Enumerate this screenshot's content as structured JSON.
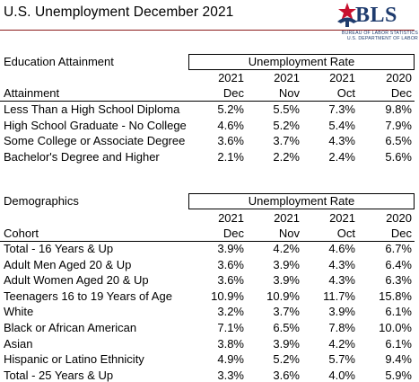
{
  "title": "U.S. Unemployment December 2021",
  "logo": {
    "name": "BLS",
    "line1": "BUREAU OF LABOR STATISTICS",
    "line2": "U.S. DEPARTMENT OF LABOR",
    "colors": {
      "navy": "#1f3c6e",
      "red": "#c8102e"
    }
  },
  "education": {
    "section_label": "Education Attainment",
    "group_header": "Unemployment Rate",
    "row_header": "Attainment",
    "columns": [
      {
        "year": "2021",
        "month": "Dec"
      },
      {
        "year": "2021",
        "month": "Nov"
      },
      {
        "year": "2021",
        "month": "Oct"
      },
      {
        "year": "2020",
        "month": "Dec"
      }
    ],
    "rows": [
      {
        "label": "Less Than a High School Diploma",
        "values": [
          "5.2%",
          "5.5%",
          "7.3%",
          "9.8%"
        ]
      },
      {
        "label": "High School Graduate - No College",
        "values": [
          "4.6%",
          "5.2%",
          "5.4%",
          "7.9%"
        ]
      },
      {
        "label": "Some College or Associate Degree",
        "values": [
          "3.6%",
          "3.7%",
          "4.3%",
          "6.5%"
        ]
      },
      {
        "label": "Bachelor's Degree and Higher",
        "values": [
          "2.1%",
          "2.2%",
          "2.4%",
          "5.6%"
        ]
      }
    ]
  },
  "demographics": {
    "section_label": "Demographics",
    "group_header": "Unemployment Rate",
    "row_header": "Cohort",
    "columns": [
      {
        "year": "2021",
        "month": "Dec"
      },
      {
        "year": "2021",
        "month": "Nov"
      },
      {
        "year": "2021",
        "month": "Oct"
      },
      {
        "year": "2020",
        "month": "Dec"
      }
    ],
    "rows": [
      {
        "label": "Total - 16 Years & Up",
        "values": [
          "3.9%",
          "4.2%",
          "4.6%",
          "6.7%"
        ]
      },
      {
        "label": "Adult Men Aged 20 & Up",
        "values": [
          "3.6%",
          "3.9%",
          "4.3%",
          "6.4%"
        ]
      },
      {
        "label": "Adult Women Aged 20 & Up",
        "values": [
          "3.6%",
          "3.9%",
          "4.3%",
          "6.3%"
        ]
      },
      {
        "label": "Teenagers 16 to 19 Years of Age",
        "values": [
          "10.9%",
          "10.9%",
          "11.7%",
          "15.8%"
        ]
      },
      {
        "label": "White",
        "values": [
          "3.2%",
          "3.7%",
          "3.9%",
          "6.1%"
        ]
      },
      {
        "label": "Black or African American",
        "values": [
          "7.1%",
          "6.5%",
          "7.8%",
          "10.0%"
        ]
      },
      {
        "label": "Asian",
        "values": [
          "3.8%",
          "3.9%",
          "4.2%",
          "6.1%"
        ]
      },
      {
        "label": "Hispanic or Latino Ethnicity",
        "values": [
          "4.9%",
          "5.2%",
          "5.7%",
          "9.4%"
        ]
      },
      {
        "label": "Total - 25 Years & Up",
        "values": [
          "3.3%",
          "3.6%",
          "4.0%",
          "5.9%"
        ]
      }
    ]
  }
}
